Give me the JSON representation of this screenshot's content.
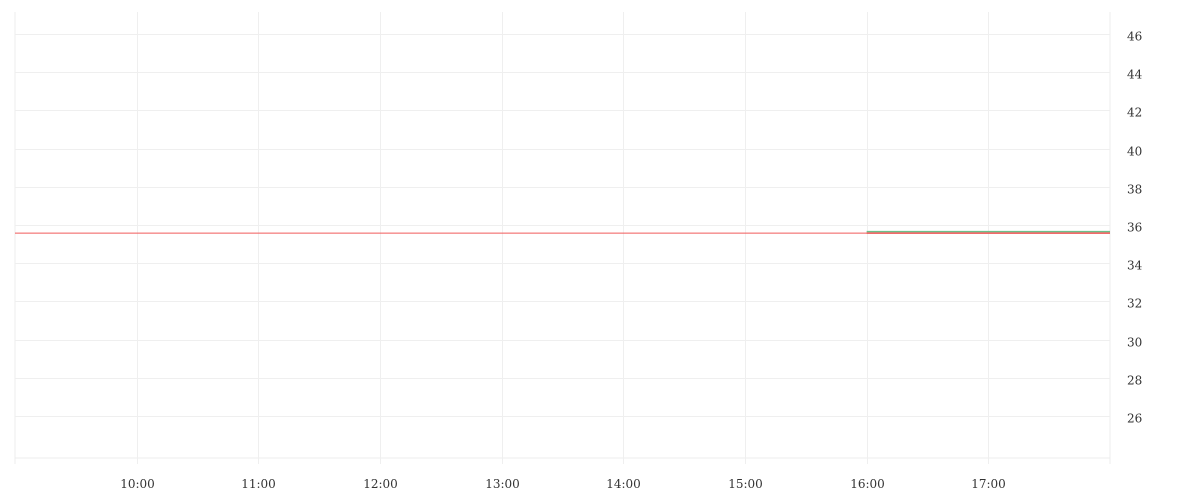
{
  "chart_data": {
    "type": "line",
    "title": "",
    "xlabel": "",
    "ylabel": "",
    "x_ticks": [
      "10:00",
      "11:00",
      "12:00",
      "13:00",
      "14:00",
      "15:00",
      "16:00",
      "17:00"
    ],
    "y_ticks": [
      26,
      28,
      30,
      32,
      34,
      36,
      38,
      40,
      42,
      44,
      46
    ],
    "xlim": [
      "09:00",
      "18:00"
    ],
    "ylim": [
      23.8,
      47.15
    ],
    "grid": true,
    "y_axis_side": "right",
    "series": [
      {
        "color": "#f05a5a",
        "points": [
          [
            "09:00",
            35.6
          ],
          [
            "18:00",
            35.6
          ]
        ]
      },
      {
        "color": "#f05a5a",
        "up_color": "#6cc08a",
        "style": "flat-bar",
        "points": [
          [
            "16:00",
            35.6
          ],
          [
            "18:00",
            35.6
          ]
        ]
      }
    ]
  }
}
